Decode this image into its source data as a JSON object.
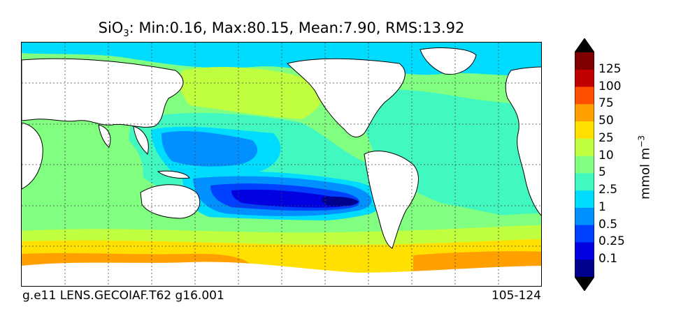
{
  "title": {
    "variable": "SiO",
    "subscript": "3",
    "stats": ": Min:0.16, Max:80.15, Mean:7.90, RMS:13.92"
  },
  "footer": {
    "case": "g.e11 LENS.GECOIAF.T62 g16.001",
    "years": "105-124"
  },
  "colorbar": {
    "units": "mmol m",
    "units_exp": "−3",
    "levels": [
      "0.1",
      "0.25",
      "0.5",
      "1",
      "2.5",
      "5",
      "10",
      "25",
      "50",
      "75",
      "100",
      "125"
    ],
    "colors": [
      "#00008f",
      "#0000e0",
      "#0040ff",
      "#0090ff",
      "#00dcff",
      "#40f8c0",
      "#80ff80",
      "#c0ff40",
      "#ffe000",
      "#ffa000",
      "#ff5000",
      "#c00000",
      "#7f0000"
    ],
    "extend_under": "#000000",
    "extend_over": "#000000"
  },
  "map": {
    "projection": "global lat-lon, Pacific-centered",
    "land_color": "#ffffff",
    "grid": "dotted graticule"
  }
}
